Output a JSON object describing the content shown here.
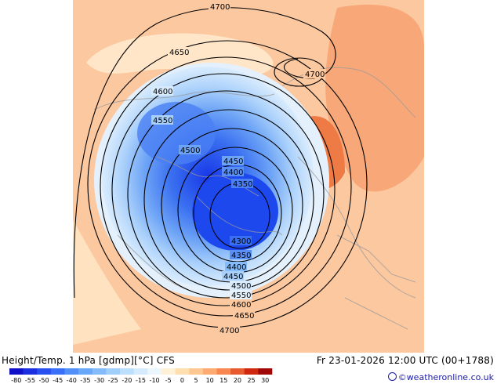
{
  "map": {
    "product": "Height/Temp. 1 hPa [gdmp][°C] CFS",
    "valid_time": "Fr 23-01-2026 12:00 UTC (00+1788)",
    "credit": "©weatheronline.co.uk",
    "contours": [
      {
        "label": "4700"
      },
      {
        "label": "4650"
      },
      {
        "label": "4600"
      },
      {
        "label": "4550"
      },
      {
        "label": "4500"
      },
      {
        "label": "4450"
      },
      {
        "label": "4400"
      },
      {
        "label": "4350"
      },
      {
        "label": "4300"
      }
    ],
    "extra_labels": {
      "high_4700": "4700",
      "lower_4350": "4350",
      "lower_4400": "4400",
      "lower_4450": "4450",
      "lower_4500": "4500",
      "lower_4550": "4550",
      "lower_4600": "4600",
      "lower_4650": "4650",
      "lower_4700": "4700"
    }
  },
  "colorbar": {
    "values": [
      "-80",
      "-55",
      "-50",
      "-45",
      "-40",
      "-35",
      "-30",
      "-25",
      "-20",
      "-15",
      "-10",
      "-5",
      "0",
      "5",
      "10",
      "15",
      "20",
      "25",
      "30"
    ],
    "colors": [
      "#1010c8",
      "#1a30e0",
      "#2850f0",
      "#3a70f8",
      "#5090f8",
      "#68a8fa",
      "#84bcfb",
      "#a0cffc",
      "#bcdffd",
      "#d6ecfe",
      "#ecf6ff",
      "#fff0d8",
      "#ffdfb0",
      "#ffc890",
      "#ffaa70",
      "#f88850",
      "#e85a30",
      "#d02810",
      "#a00808"
    ]
  },
  "colors": {
    "background_warm": "#fdbf90",
    "cold_core": "#2060f0"
  }
}
